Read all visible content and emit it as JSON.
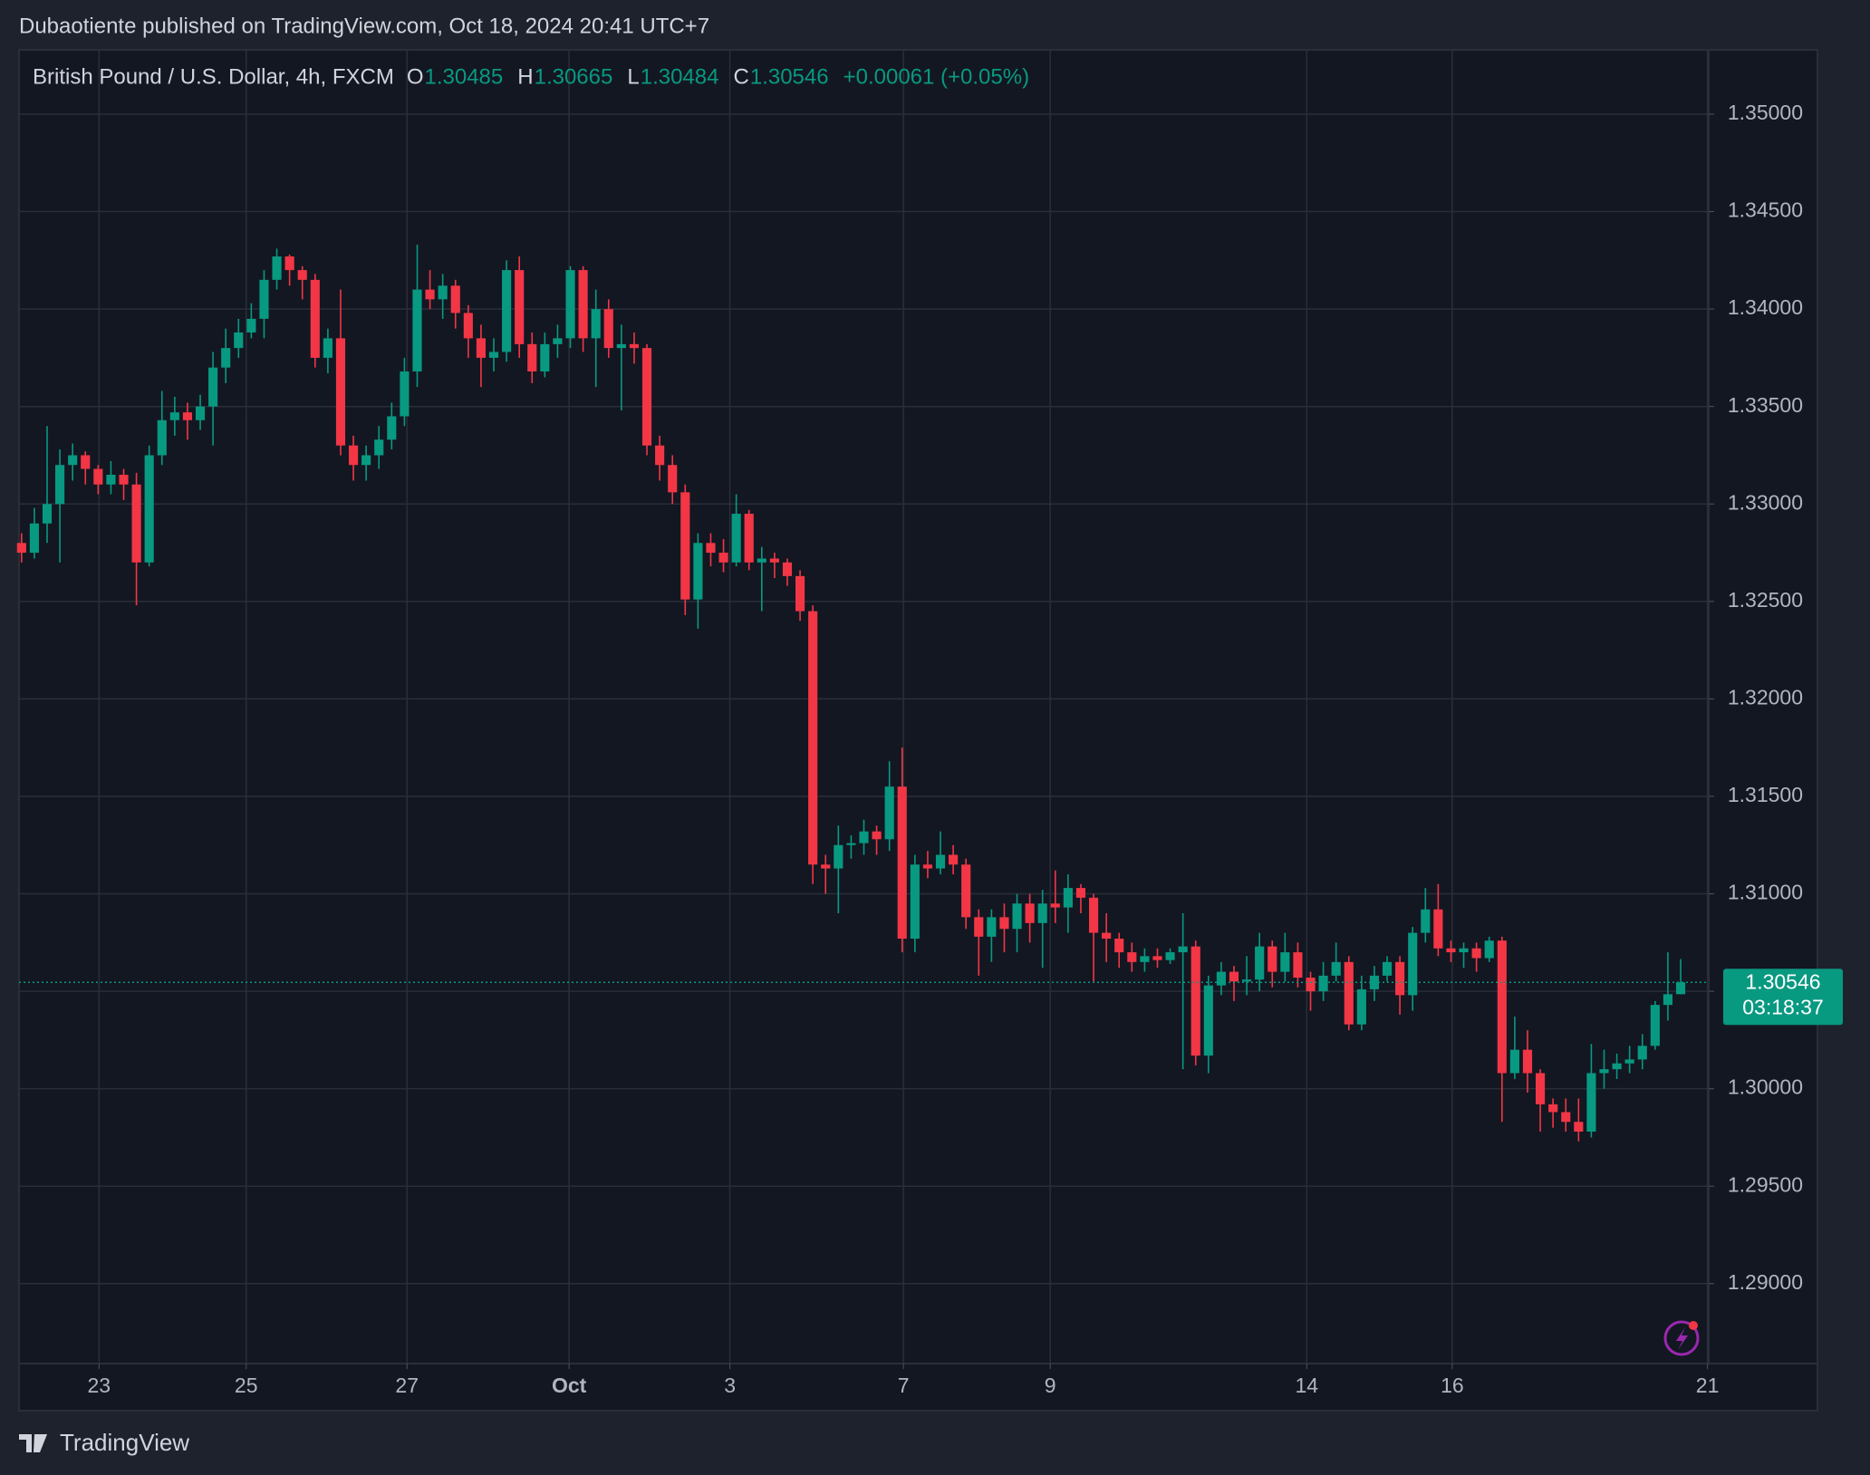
{
  "publisher": "Dubaotiente published on TradingView.com, Oct 18, 2024 20:41 UTC+7",
  "brand": "TradingView",
  "chart_data": {
    "type": "candlestick",
    "title": "British Pound / U.S. Dollar, 4h, FXCM",
    "ohlc_labels": [
      "O",
      "H",
      "L",
      "C"
    ],
    "change_label": "+0.00061 (+0.05%)",
    "countdown": "03:18:37",
    "up_color": "#089981",
    "down_color": "#f23645",
    "grid": true,
    "open": [
      1.328,
      1.3275,
      1.329,
      1.33,
      1.332,
      1.3325,
      1.3318,
      1.331,
      1.3315,
      1.331,
      1.327,
      1.3325,
      1.3343,
      1.3347,
      1.3343,
      1.335,
      1.337,
      1.338,
      1.3388,
      1.3395,
      1.3415,
      1.3427,
      1.342,
      1.3415,
      1.3375,
      1.3385,
      1.333,
      1.332,
      1.3325,
      1.3333,
      1.3345,
      1.3368,
      1.341,
      1.3405,
      1.3412,
      1.3398,
      1.3385,
      1.3375,
      1.3378,
      1.342,
      1.3382,
      1.3368,
      1.3382,
      1.3385,
      1.342,
      1.3385,
      1.34,
      1.338,
      1.3382,
      1.338,
      1.333,
      1.332,
      1.3306,
      1.3251,
      1.328,
      1.3275,
      1.327,
      1.3295,
      1.327,
      1.3272,
      1.327,
      1.3263,
      1.3245,
      1.3115,
      1.3113,
      1.3125,
      1.3126,
      1.3132,
      1.3128,
      1.3155,
      1.3077,
      1.3115,
      1.3113,
      1.312,
      1.3115,
      1.3088,
      1.3078,
      1.3088,
      1.3082,
      1.3095,
      1.3085,
      1.3095,
      1.3093,
      1.3103,
      1.3098,
      1.308,
      1.3077,
      1.307,
      1.3065,
      1.3068,
      1.3066,
      1.307,
      1.3073,
      1.3017,
      1.3053,
      1.306,
      1.3055,
      1.3056,
      1.3073,
      1.306,
      1.307,
      1.3057,
      1.305,
      1.3058,
      1.3065,
      1.3033,
      1.3051,
      1.3058,
      1.3065,
      1.3048,
      1.308,
      1.3092,
      1.3072,
      1.307,
      1.3072,
      1.3067,
      1.3076,
      1.3008,
      1.302,
      1.3008,
      1.2992,
      1.2988,
      1.2983,
      1.2978,
      1.3008,
      1.301,
      1.3013,
      1.3015,
      1.3022,
      1.3043,
      1.30485
    ],
    "high": [
      1.3285,
      1.3298,
      1.334,
      1.3328,
      1.3331,
      1.3327,
      1.332,
      1.3322,
      1.3318,
      1.3316,
      1.333,
      1.3358,
      1.3355,
      1.3352,
      1.3356,
      1.3378,
      1.339,
      1.3395,
      1.3403,
      1.342,
      1.3431,
      1.3428,
      1.3422,
      1.3418,
      1.339,
      1.341,
      1.3335,
      1.333,
      1.334,
      1.3352,
      1.3375,
      1.3433,
      1.342,
      1.3418,
      1.3415,
      1.3402,
      1.3392,
      1.3385,
      1.3425,
      1.3427,
      1.3388,
      1.3388,
      1.3392,
      1.3422,
      1.3422,
      1.341,
      1.3405,
      1.3392,
      1.3388,
      1.3382,
      1.3335,
      1.3325,
      1.331,
      1.3285,
      1.3285,
      1.3282,
      1.3305,
      1.3297,
      1.3278,
      1.3275,
      1.3272,
      1.3266,
      1.3248,
      1.312,
      1.3135,
      1.313,
      1.3138,
      1.3135,
      1.3168,
      1.3175,
      1.312,
      1.3122,
      1.3132,
      1.3125,
      1.3118,
      1.3092,
      1.3092,
      1.3095,
      1.31,
      1.31,
      1.3102,
      1.3112,
      1.311,
      1.3105,
      1.31,
      1.309,
      1.308,
      1.3075,
      1.3072,
      1.3072,
      1.3072,
      1.309,
      1.3076,
      1.3058,
      1.3065,
      1.3063,
      1.3068,
      1.308,
      1.3076,
      1.308,
      1.3075,
      1.306,
      1.3065,
      1.3075,
      1.3068,
      1.3058,
      1.3063,
      1.3068,
      1.3068,
      1.3083,
      1.3103,
      1.3105,
      1.3076,
      1.3075,
      1.3075,
      1.3078,
      1.3078,
      1.3037,
      1.303,
      1.301,
      1.2995,
      1.2995,
      1.2995,
      1.3023,
      1.302,
      1.3018,
      1.3022,
      1.3028,
      1.3045,
      1.307,
      1.30665
    ],
    "low": [
      1.327,
      1.3272,
      1.328,
      1.327,
      1.3312,
      1.331,
      1.3305,
      1.3305,
      1.3302,
      1.3248,
      1.3268,
      1.332,
      1.3335,
      1.3333,
      1.3338,
      1.333,
      1.3362,
      1.3375,
      1.3385,
      1.3385,
      1.341,
      1.3412,
      1.3405,
      1.337,
      1.3367,
      1.3325,
      1.3312,
      1.3312,
      1.3318,
      1.3328,
      1.334,
      1.336,
      1.34,
      1.3395,
      1.339,
      1.3375,
      1.336,
      1.3368,
      1.3373,
      1.3375,
      1.3362,
      1.3365,
      1.3375,
      1.338,
      1.3378,
      1.336,
      1.3375,
      1.3348,
      1.3372,
      1.3325,
      1.3312,
      1.33,
      1.3243,
      1.3236,
      1.3268,
      1.3265,
      1.3268,
      1.3266,
      1.3245,
      1.3262,
      1.3258,
      1.324,
      1.3105,
      1.31,
      1.309,
      1.3118,
      1.312,
      1.312,
      1.3122,
      1.307,
      1.307,
      1.3108,
      1.311,
      1.311,
      1.3082,
      1.3058,
      1.3065,
      1.307,
      1.307,
      1.3075,
      1.3062,
      1.3085,
      1.308,
      1.309,
      1.3055,
      1.3065,
      1.3062,
      1.306,
      1.306,
      1.3062,
      1.3064,
      1.301,
      1.3012,
      1.3008,
      1.3048,
      1.3045,
      1.3048,
      1.305,
      1.3052,
      1.3055,
      1.3052,
      1.304,
      1.3045,
      1.3055,
      1.303,
      1.303,
      1.3045,
      1.3055,
      1.3038,
      1.304,
      1.3075,
      1.3068,
      1.3065,
      1.3062,
      1.306,
      1.3065,
      1.2983,
      1.3005,
      1.2998,
      1.2978,
      1.298,
      1.2978,
      1.2973,
      1.2975,
      1.3,
      1.3005,
      1.3008,
      1.301,
      1.302,
      1.3035,
      1.30484
    ],
    "close": [
      1.3275,
      1.329,
      1.33,
      1.332,
      1.3325,
      1.3318,
      1.331,
      1.3315,
      1.331,
      1.327,
      1.3325,
      1.3343,
      1.3347,
      1.3343,
      1.335,
      1.337,
      1.338,
      1.3388,
      1.3395,
      1.3415,
      1.3427,
      1.342,
      1.3415,
      1.3375,
      1.3385,
      1.333,
      1.332,
      1.3325,
      1.3333,
      1.3345,
      1.3368,
      1.341,
      1.3405,
      1.3412,
      1.3398,
      1.3385,
      1.3375,
      1.3378,
      1.342,
      1.3382,
      1.3368,
      1.3382,
      1.3385,
      1.342,
      1.3385,
      1.34,
      1.338,
      1.3382,
      1.338,
      1.333,
      1.332,
      1.3306,
      1.3251,
      1.328,
      1.3275,
      1.327,
      1.3295,
      1.327,
      1.3272,
      1.327,
      1.3263,
      1.3245,
      1.3115,
      1.3113,
      1.3125,
      1.3126,
      1.3132,
      1.3128,
      1.3155,
      1.3077,
      1.3115,
      1.3113,
      1.312,
      1.3115,
      1.3088,
      1.3078,
      1.3088,
      1.3082,
      1.3095,
      1.3085,
      1.3095,
      1.3093,
      1.3103,
      1.3098,
      1.308,
      1.3077,
      1.307,
      1.3065,
      1.3068,
      1.3066,
      1.307,
      1.3073,
      1.3017,
      1.3053,
      1.306,
      1.3055,
      1.3056,
      1.3073,
      1.306,
      1.307,
      1.3057,
      1.305,
      1.3058,
      1.3065,
      1.3033,
      1.3051,
      1.3058,
      1.3065,
      1.3048,
      1.308,
      1.3092,
      1.3072,
      1.307,
      1.3072,
      1.3067,
      1.3076,
      1.3008,
      1.302,
      1.3008,
      1.2992,
      1.2988,
      1.2983,
      1.2978,
      1.3008,
      1.301,
      1.3013,
      1.3015,
      1.3022,
      1.3043,
      1.30485,
      1.30546
    ],
    "xlim": [
      -0.2,
      132.2
    ],
    "xticks": [
      {
        "value": 6.07,
        "label": "23"
      },
      {
        "value": 17.6,
        "label": "25"
      },
      {
        "value": 30.2,
        "label": "27"
      },
      {
        "value": 42.9,
        "label": "Oct"
      },
      {
        "value": 55.5,
        "label": "3"
      },
      {
        "value": 69.1,
        "label": "7"
      },
      {
        "value": 80.6,
        "label": "9"
      },
      {
        "value": 100.7,
        "label": "14"
      },
      {
        "value": 112.1,
        "label": "16"
      },
      {
        "value": 132.1,
        "label": "21"
      }
    ],
    "ylim": [
      1.2859,
      1.3533
    ],
    "yticks": [
      {
        "value": 1.29,
        "label": "1.29000"
      },
      {
        "value": 1.295,
        "label": "1.29500"
      },
      {
        "value": 1.3,
        "label": "1.30000"
      },
      {
        "value": 1.305,
        "label": "1.30500"
      },
      {
        "value": 1.31,
        "label": "1.31000"
      },
      {
        "value": 1.315,
        "label": "1.31500"
      },
      {
        "value": 1.32,
        "label": "1.32000"
      },
      {
        "value": 1.325,
        "label": "1.32500"
      },
      {
        "value": 1.33,
        "label": "1.33000"
      },
      {
        "value": 1.335,
        "label": "1.33500"
      },
      {
        "value": 1.34,
        "label": "1.34000"
      },
      {
        "value": 1.345,
        "label": "1.34500"
      },
      {
        "value": 1.35,
        "label": "1.35000"
      }
    ]
  }
}
